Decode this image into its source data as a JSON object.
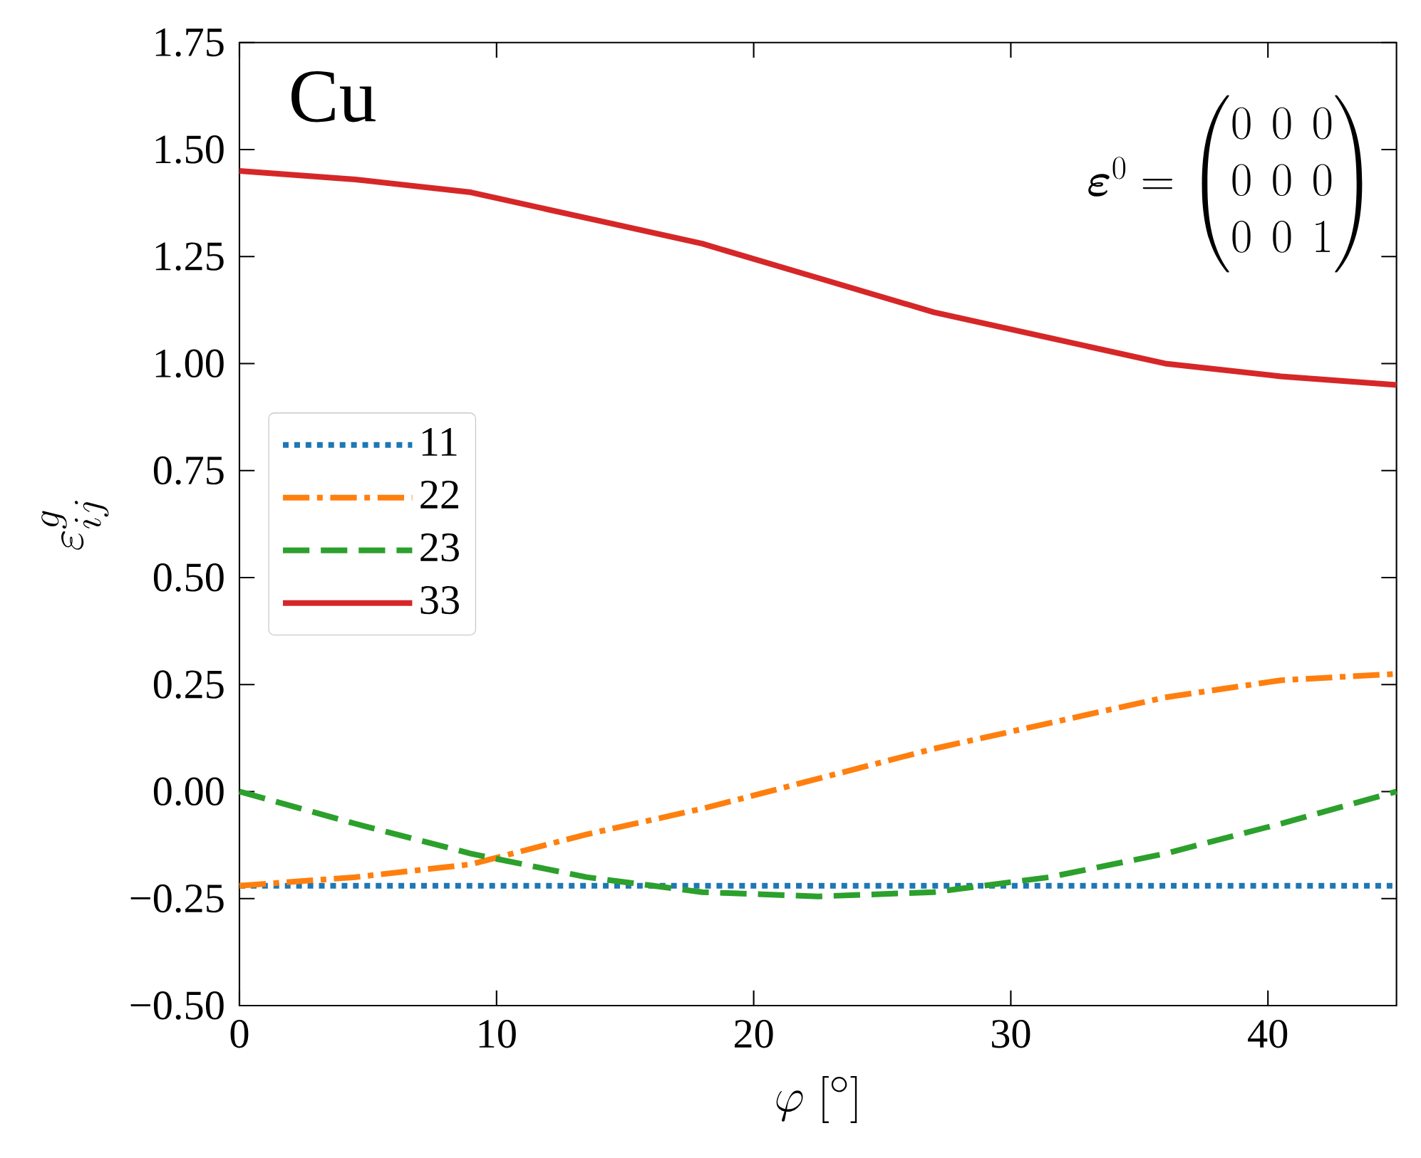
{
  "chart_data": {
    "type": "line",
    "x": [
      0,
      4.5,
      9,
      13.5,
      18,
      22.5,
      27,
      31.5,
      36,
      40.5,
      45
    ],
    "series": [
      {
        "name": "11",
        "color": "#1f77b4",
        "line_style": "dotted",
        "values": [
          -0.22,
          -0.22,
          -0.22,
          -0.22,
          -0.22,
          -0.22,
          -0.22,
          -0.22,
          -0.22,
          -0.22,
          -0.22
        ]
      },
      {
        "name": "22",
        "color": "#ff7f0e",
        "line_style": "dashdot",
        "values": [
          -0.22,
          -0.2,
          -0.17,
          -0.1,
          -0.04,
          0.03,
          0.1,
          0.16,
          0.22,
          0.26,
          0.275
        ]
      },
      {
        "name": "23",
        "color": "#2ca02c",
        "line_style": "dashed",
        "values": [
          0,
          -0.075,
          -0.145,
          -0.2,
          -0.235,
          -0.245,
          -0.235,
          -0.2,
          -0.145,
          -0.075,
          0
        ]
      },
      {
        "name": "33",
        "color": "#d62728",
        "line_style": "solid",
        "values": [
          1.45,
          1.43,
          1.4,
          1.34,
          1.28,
          1.2,
          1.12,
          1.06,
          1.0,
          0.97,
          0.95
        ]
      }
    ],
    "xlabel": "\\varphi\\ [^\\circ]",
    "ylabel": "\\varepsilon^{g}_{ij}",
    "xlim": [
      0,
      45
    ],
    "ylim": [
      -0.5,
      1.75
    ],
    "xticks": [
      0,
      10,
      20,
      30,
      40
    ],
    "yticks": [
      {
        "value": -0.5,
        "label": "−0.50"
      },
      {
        "value": -0.25,
        "label": "−0.25"
      },
      {
        "value": 0,
        "label": "0.00"
      },
      {
        "value": 0.25,
        "label": "0.25"
      },
      {
        "value": 0.5,
        "label": "0.50"
      },
      {
        "value": 0.75,
        "label": "0.75"
      },
      {
        "value": 1.0,
        "label": "1.00"
      },
      {
        "value": 1.25,
        "label": "1.25"
      },
      {
        "value": 1.5,
        "label": "1.50"
      },
      {
        "value": 1.75,
        "label": "1.75"
      }
    ],
    "annotations": [
      "Cu",
      "\\boldsymbol{\\varepsilon}^{0} = \\begin{pmatrix}0 & 0 & 0\\\\ 0 & 0 & 0\\\\ 0 & 0 & 1\\end{pmatrix}"
    ],
    "legend": "left",
    "grid": false
  }
}
